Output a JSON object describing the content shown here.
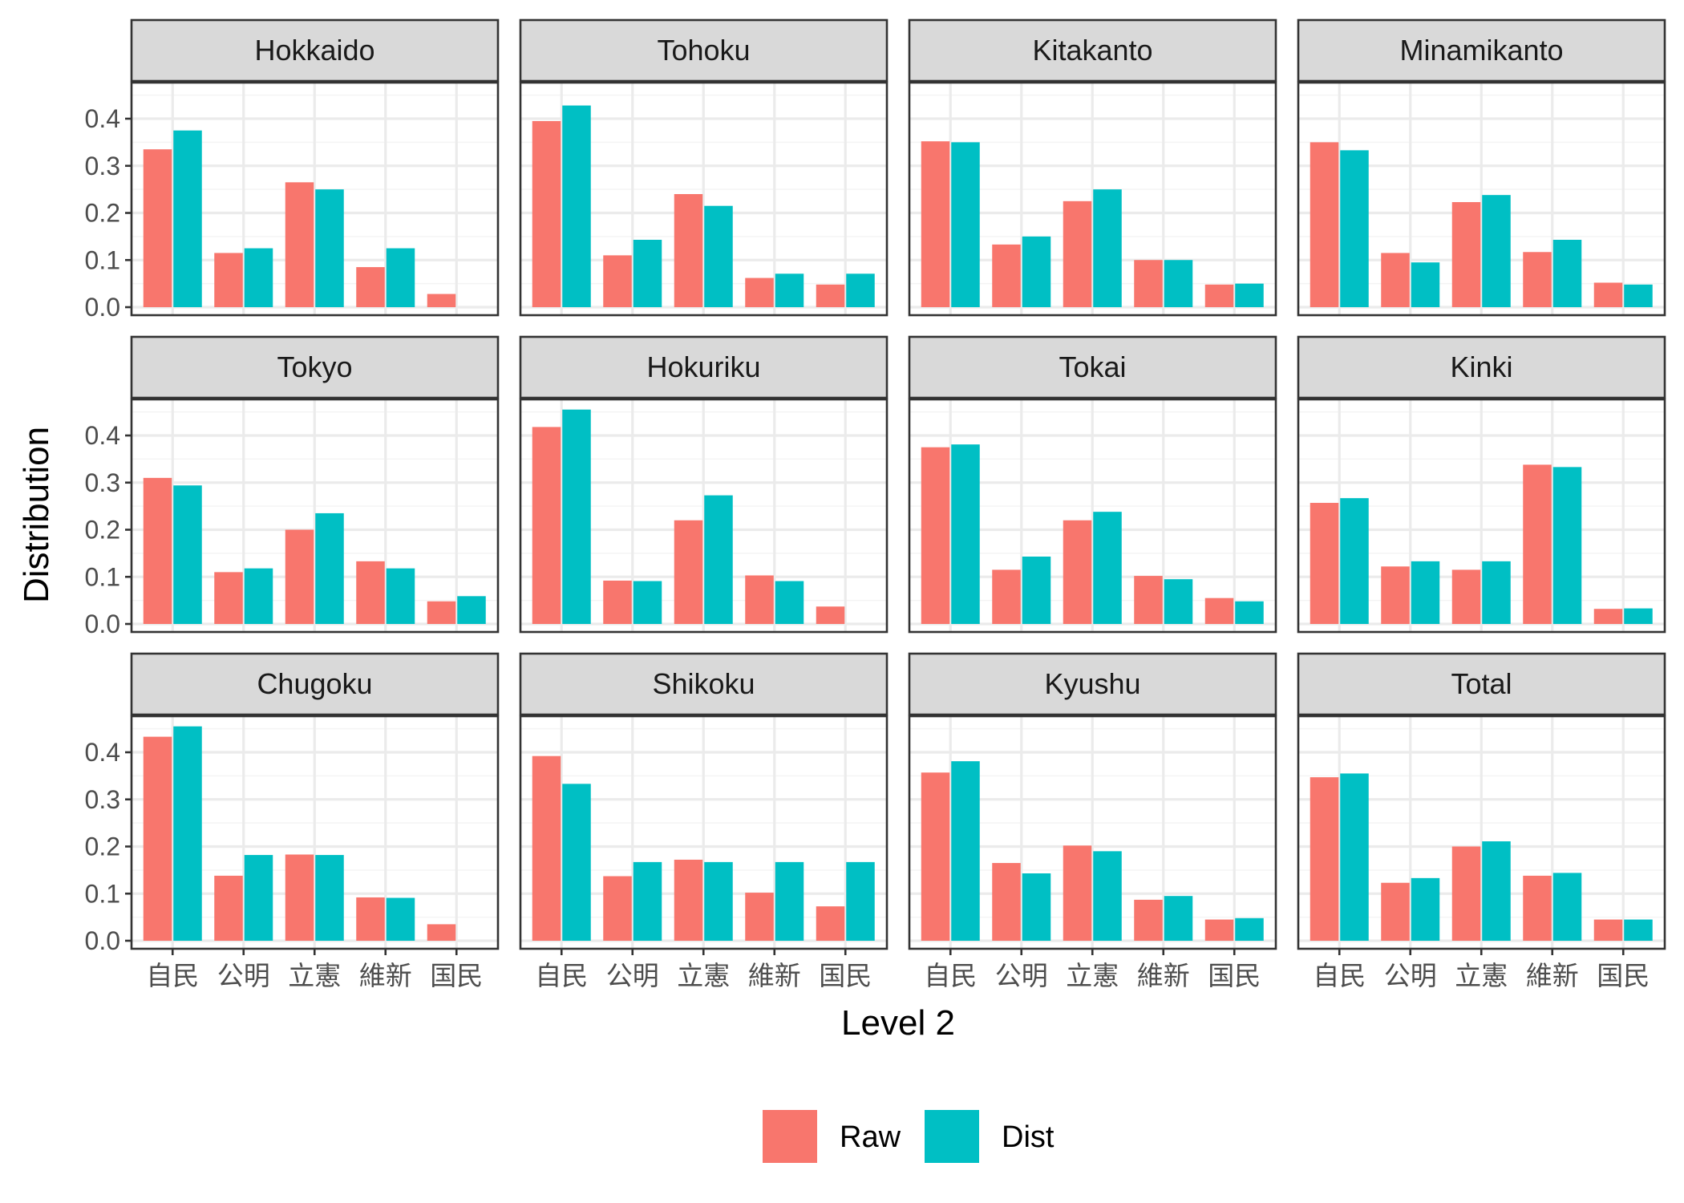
{
  "chart_data": {
    "type": "bar",
    "layout": "facet-grid",
    "xlabel": "Level 2",
    "ylabel": "Distribution",
    "ylim": [
      0,
      0.48
    ],
    "yticks": [
      0.0,
      0.1,
      0.2,
      0.3,
      0.4
    ],
    "ytick_labels": [
      "0.0",
      "0.1",
      "0.2",
      "0.3",
      "0.4"
    ],
    "categories": [
      "自民",
      "公明",
      "立憲",
      "維新",
      "国民"
    ],
    "legend": {
      "position": "bottom",
      "entries": [
        {
          "name": "Raw",
          "color": "#F8766D"
        },
        {
          "name": "Dist",
          "color": "#00BFC4"
        }
      ]
    },
    "panels": [
      {
        "title": "Hokkaido",
        "raw": [
          0.335,
          0.115,
          0.265,
          0.085,
          0.028
        ],
        "dist": [
          0.375,
          0.125,
          0.25,
          0.125,
          0.0
        ]
      },
      {
        "title": "Tohoku",
        "raw": [
          0.395,
          0.11,
          0.24,
          0.062,
          0.048
        ],
        "dist": [
          0.428,
          0.143,
          0.215,
          0.071,
          0.071
        ]
      },
      {
        "title": "Kitakanto",
        "raw": [
          0.352,
          0.133,
          0.225,
          0.1,
          0.048
        ],
        "dist": [
          0.35,
          0.15,
          0.25,
          0.1,
          0.05
        ]
      },
      {
        "title": "Minamikanto",
        "raw": [
          0.35,
          0.115,
          0.223,
          0.117,
          0.052
        ],
        "dist": [
          0.333,
          0.095,
          0.238,
          0.143,
          0.048
        ]
      },
      {
        "title": "Tokyo",
        "raw": [
          0.31,
          0.11,
          0.2,
          0.133,
          0.048
        ],
        "dist": [
          0.294,
          0.118,
          0.235,
          0.118,
          0.059
        ]
      },
      {
        "title": "Hokuriku",
        "raw": [
          0.418,
          0.092,
          0.22,
          0.103,
          0.037
        ],
        "dist": [
          0.455,
          0.091,
          0.273,
          0.091,
          0.0
        ]
      },
      {
        "title": "Tokai",
        "raw": [
          0.375,
          0.115,
          0.22,
          0.102,
          0.055
        ],
        "dist": [
          0.381,
          0.143,
          0.238,
          0.095,
          0.048
        ]
      },
      {
        "title": "Kinki",
        "raw": [
          0.257,
          0.122,
          0.115,
          0.338,
          0.032
        ],
        "dist": [
          0.267,
          0.133,
          0.133,
          0.333,
          0.033
        ]
      },
      {
        "title": "Chugoku",
        "raw": [
          0.433,
          0.138,
          0.183,
          0.092,
          0.035
        ],
        "dist": [
          0.455,
          0.182,
          0.182,
          0.091,
          0.0
        ]
      },
      {
        "title": "Shikoku",
        "raw": [
          0.392,
          0.137,
          0.172,
          0.102,
          0.073
        ],
        "dist": [
          0.333,
          0.167,
          0.167,
          0.167,
          0.167
        ]
      },
      {
        "title": "Kyushu",
        "raw": [
          0.357,
          0.165,
          0.202,
          0.087,
          0.045
        ],
        "dist": [
          0.381,
          0.143,
          0.19,
          0.095,
          0.048
        ]
      },
      {
        "title": "Total",
        "raw": [
          0.347,
          0.123,
          0.2,
          0.138,
          0.045
        ],
        "dist": [
          0.355,
          0.133,
          0.211,
          0.144,
          0.045
        ]
      }
    ]
  }
}
